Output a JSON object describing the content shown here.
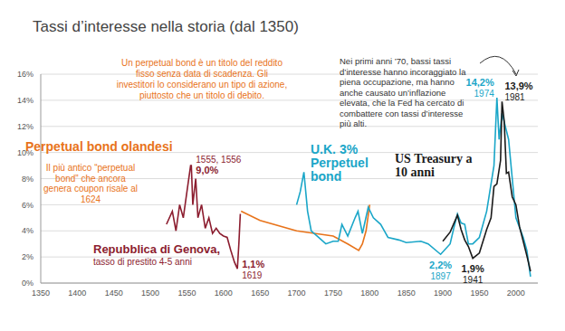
{
  "chart_data": {
    "type": "line",
    "title": "Tassi d’interesse nella storia (dal 1350)",
    "annotations": [
      "Un perpetual bond è un titolo del reddito fisso senza data di scadenza. Gli investitori lo considerano un tipo di azione, piuttosto che un titolo di debito.",
      "Il più antico “perpetual bond” che ancora genera coupon risale al 1624",
      "tasso di prestito 4-5 anni",
      "Nei primi anni ’70, bassi tassi d’interesse hanno incoraggiato la piena occupazione, ma hanno anche causato un’inflazione elevata, che la Fed ha cercato di combattere con tassi d’interesse più alti."
    ],
    "xlim": [
      1350,
      2030
    ],
    "xticks": [
      1350,
      1400,
      1450,
      1500,
      1550,
      1600,
      1650,
      1700,
      1750,
      1800,
      1850,
      1900,
      1950,
      2000
    ],
    "ylim": [
      0,
      16
    ],
    "yticks": [
      {
        "value": 0,
        "label": "0%"
      },
      {
        "value": 2,
        "label": "2%"
      },
      {
        "value": 4,
        "label": "4%"
      },
      {
        "value": 6,
        "label": "6%"
      },
      {
        "value": 8,
        "label": "8%"
      },
      {
        "value": 10,
        "label": "10%"
      },
      {
        "value": 12,
        "label": "12%"
      },
      {
        "value": 14,
        "label": "14%"
      },
      {
        "value": 16,
        "label": "16%"
      }
    ],
    "grid": true,
    "series": [
      {
        "name": "Perpetual bond olandesi",
        "color": "#e8731a",
        "x": [
          1624,
          1650,
          1700,
          1750,
          1770,
          1785,
          1790,
          1795,
          1800
        ],
        "values": [
          5.5,
          4.8,
          4.0,
          3.6,
          3.0,
          2.5,
          3.0,
          4.0,
          6.0
        ]
      },
      {
        "name": "Repubblica di Genova,",
        "color": "#8c1d2f",
        "x": [
          1522,
          1530,
          1535,
          1540,
          1545,
          1550,
          1555,
          1556,
          1558,
          1562,
          1565,
          1570,
          1575,
          1580,
          1585,
          1590,
          1595,
          1600,
          1605,
          1610,
          1615,
          1619,
          1621,
          1623
        ],
        "values": [
          4.5,
          5.5,
          4.0,
          6.0,
          5.0,
          7.0,
          9.0,
          9.0,
          6.0,
          8.0,
          5.0,
          6.0,
          4.2,
          5.0,
          3.8,
          4.2,
          3.8,
          3.6,
          3.5,
          2.5,
          1.6,
          1.1,
          3.0,
          5.3
        ]
      },
      {
        "name": "U.K. 3% Perpetuel bond",
        "color": "#1aa6c8",
        "x": [
          1700,
          1705,
          1710,
          1715,
          1720,
          1730,
          1740,
          1750,
          1757,
          1762,
          1770,
          1780,
          1784,
          1790,
          1798,
          1805,
          1815,
          1825,
          1840,
          1850,
          1870,
          1880,
          1897,
          1910,
          1915,
          1920,
          1925,
          1930,
          1935,
          1941,
          1950,
          1960,
          1970,
          1974,
          1977,
          1981,
          1990,
          2000,
          2010,
          2015,
          2020
        ],
        "values": [
          6.0,
          7.0,
          8.5,
          5.5,
          4.0,
          3.5,
          3.0,
          3.2,
          3.2,
          4.5,
          3.6,
          5.0,
          5.5,
          3.8,
          5.8,
          5.0,
          4.5,
          3.5,
          3.3,
          3.1,
          3.2,
          3.0,
          2.2,
          3.0,
          4.2,
          5.3,
          4.6,
          4.5,
          3.0,
          3.0,
          3.5,
          5.5,
          9.0,
          14.2,
          11.0,
          13.0,
          11.0,
          5.0,
          3.5,
          2.5,
          0.5
        ]
      },
      {
        "name": "US Treasury a 10 anni",
        "color": "#1a1a1a",
        "x": [
          1900,
          1910,
          1920,
          1925,
          1930,
          1935,
          1941,
          1950,
          1960,
          1966,
          1970,
          1974,
          1979,
          1981,
          1984,
          1987,
          1990,
          1995,
          2000,
          2005,
          2010,
          2015,
          2020
        ],
        "values": [
          3.2,
          3.9,
          5.2,
          4.1,
          3.3,
          2.8,
          1.9,
          2.3,
          4.1,
          5.0,
          7.4,
          7.6,
          9.4,
          13.9,
          12.4,
          8.4,
          8.5,
          6.6,
          6.0,
          4.3,
          3.2,
          2.1,
          0.9
        ]
      }
    ],
    "point_labels": [
      {
        "x": 1556,
        "value": 9.0,
        "text": "1555, 1556",
        "value_label": "9,0%",
        "color": "#8c1d2f"
      },
      {
        "x": 1619,
        "value": 1.1,
        "text": "1619",
        "value_label": "1,1%",
        "color": "#8c1d2f"
      },
      {
        "x": 1897,
        "value": 2.2,
        "text": "1897",
        "value_label": "2,2%",
        "color": "#1aa6c8"
      },
      {
        "x": 1941,
        "value": 1.9,
        "text": "1941",
        "value_label": "1,9%",
        "color": "#1a1a1a"
      },
      {
        "x": 1974,
        "value": 14.2,
        "text": "1974",
        "value_label": "14,2%",
        "color": "#1aa6c8"
      },
      {
        "x": 1981,
        "value": 13.9,
        "text": "1981",
        "value_label": "13,9%",
        "color": "#1a1a1a"
      }
    ]
  }
}
